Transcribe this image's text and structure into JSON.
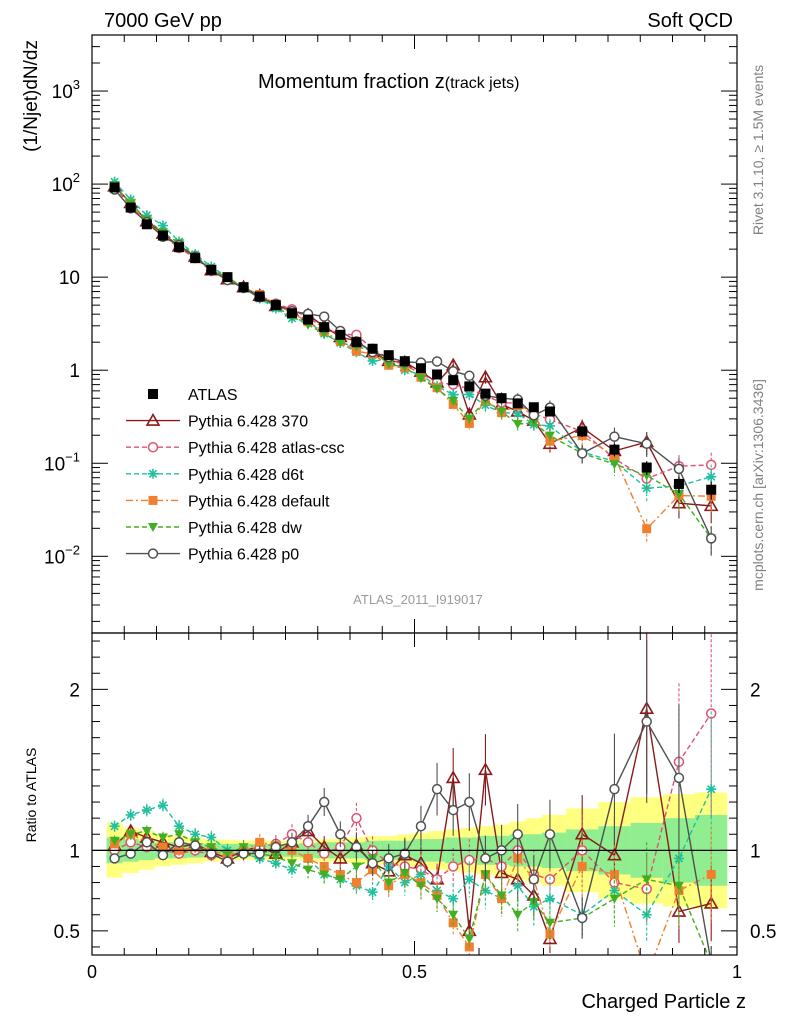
{
  "header": {
    "left": "7000 GeV pp",
    "right": "Soft QCD"
  },
  "side_labels": {
    "rivet": "Rivet 3.1.10, ≥ 1.5M events",
    "mcplots": "mcplots.cern.ch [arXiv:1306.3436]"
  },
  "chart_data": {
    "type": "scatter",
    "title": "Momentum fraction z",
    "title_suffix": "(track jets)",
    "analysis_label": "ATLAS_2011_I919017",
    "ylabel": "(1/Njet)dN/dz",
    "ratio_ylabel": "Ratio to ATLAS",
    "xlabel": "Charged Particle z",
    "xlim": [
      0,
      1
    ],
    "ylim": [
      0.0015,
      4000
    ],
    "ylog": true,
    "ratio_ylim": [
      0.35,
      2.35
    ],
    "x_ticks": [
      "0",
      "0.5",
      "1"
    ],
    "y_ticks": [
      "10^-2",
      "10^-1",
      "1",
      "10",
      "10^2",
      "10^3"
    ],
    "ratio_ticks": [
      "0.5",
      "1",
      "2"
    ],
    "legend_position": "lower-left",
    "x": [
      0.035,
      0.06,
      0.085,
      0.11,
      0.135,
      0.16,
      0.185,
      0.21,
      0.235,
      0.26,
      0.285,
      0.31,
      0.335,
      0.36,
      0.385,
      0.41,
      0.435,
      0.46,
      0.485,
      0.51,
      0.535,
      0.56,
      0.585,
      0.61,
      0.635,
      0.66,
      0.685,
      0.71,
      0.76,
      0.81,
      0.86,
      0.91,
      0.96
    ],
    "data": {
      "name": "ATLAS",
      "values": [
        92,
        56,
        37,
        28,
        21,
        16,
        12,
        10,
        7.8,
        6.2,
        5.0,
        4.1,
        3.5,
        2.9,
        2.4,
        2.0,
        1.7,
        1.45,
        1.25,
        1.05,
        0.9,
        0.78,
        0.67,
        0.56,
        0.5,
        0.44,
        0.4,
        0.36,
        0.22,
        0.14,
        0.09,
        0.06,
        0.052
      ],
      "band_inner": [
        0.08,
        0.07,
        0.06,
        0.05,
        0.05,
        0.045,
        0.04,
        0.04,
        0.04,
        0.04,
        0.04,
        0.04,
        0.045,
        0.05,
        0.05,
        0.05,
        0.06,
        0.06,
        0.06,
        0.07,
        0.07,
        0.08,
        0.08,
        0.09,
        0.09,
        0.1,
        0.1,
        0.11,
        0.13,
        0.15,
        0.17,
        0.2,
        0.22
      ],
      "band_outer": [
        0.17,
        0.14,
        0.12,
        0.1,
        0.09,
        0.08,
        0.07,
        0.065,
        0.06,
        0.06,
        0.06,
        0.06,
        0.065,
        0.07,
        0.07,
        0.08,
        0.09,
        0.09,
        0.1,
        0.11,
        0.12,
        0.13,
        0.14,
        0.15,
        0.16,
        0.18,
        0.2,
        0.22,
        0.26,
        0.3,
        0.33,
        0.35,
        0.36
      ]
    },
    "series": [
      {
        "name": "Pythia 6.428 370",
        "color": "#8b1a1a",
        "marker": "triangle-open",
        "line": "solid",
        "ratio": [
          1.03,
          1.12,
          1.08,
          1.05,
          1.02,
          1.04,
          0.99,
          0.95,
          1.0,
          1.02,
          0.98,
          1.05,
          1.12,
          1.02,
          0.95,
          1.03,
          0.92,
          0.87,
          0.97,
          0.92,
          0.82,
          1.45,
          0.5,
          1.5,
          0.86,
          0.82,
          0.72,
          0.45,
          1.1,
          0.97,
          1.88,
          0.62,
          0.67
        ]
      },
      {
        "name": "Pythia 6.428 atlas-csc",
        "color": "#e05070",
        "marker": "circle-open",
        "line": "dashed",
        "ratio": [
          1.0,
          1.05,
          1.02,
          1.0,
          0.98,
          1.0,
          0.97,
          0.96,
          1.0,
          1.02,
          1.04,
          1.1,
          1.05,
          0.98,
          1.02,
          1.2,
          1.0,
          0.92,
          0.9,
          0.88,
          0.82,
          0.9,
          0.94,
          0.95,
          0.9,
          1.0,
          0.85,
          0.82,
          1.0,
          0.8,
          0.76,
          1.55,
          1.85
        ]
      },
      {
        "name": "Pythia 6.428 d6t",
        "color": "#20c0a0",
        "marker": "star",
        "line": "dashed",
        "ratio": [
          1.15,
          1.22,
          1.25,
          1.28,
          1.15,
          1.1,
          1.08,
          1.0,
          0.98,
          0.95,
          0.92,
          0.88,
          0.95,
          0.85,
          0.82,
          0.78,
          0.74,
          0.9,
          0.8,
          0.85,
          0.75,
          0.7,
          0.82,
          0.75,
          0.7,
          0.78,
          0.65,
          0.7,
          0.6,
          0.75,
          0.6,
          0.95,
          1.38
        ]
      },
      {
        "name": "Pythia 6.428 default",
        "color": "#f08030",
        "marker": "square",
        "line": "dashdot",
        "ratio": [
          1.04,
          1.1,
          1.05,
          1.02,
          1.0,
          1.02,
          1.0,
          0.97,
          1.0,
          1.05,
          1.03,
          1.0,
          0.95,
          0.9,
          0.85,
          0.8,
          0.88,
          0.78,
          0.85,
          0.8,
          0.72,
          0.55,
          0.4,
          0.85,
          0.7,
          0.95,
          0.82,
          0.48,
          0.9,
          0.85,
          0.22,
          0.75,
          0.85
        ]
      },
      {
        "name": "Pythia 6.428 dw",
        "color": "#40b020",
        "marker": "triangle-down",
        "line": "dashed",
        "ratio": [
          1.06,
          1.1,
          1.12,
          1.08,
          1.1,
          1.05,
          1.02,
          0.98,
          1.02,
          0.98,
          0.96,
          0.92,
          0.88,
          0.85,
          0.82,
          0.9,
          0.95,
          0.8,
          0.86,
          0.78,
          0.7,
          0.6,
          0.45,
          0.85,
          0.72,
          0.6,
          0.68,
          0.55,
          0.58,
          0.7,
          0.82,
          0.78,
          0.3
        ]
      },
      {
        "name": "Pythia 6.428 p0",
        "color": "#505050",
        "marker": "circle-open",
        "line": "solid",
        "ratio": [
          0.95,
          0.98,
          1.05,
          0.97,
          1.05,
          1.03,
          0.98,
          0.93,
          0.98,
          0.98,
          1.02,
          1.05,
          1.15,
          1.3,
          1.1,
          1.02,
          0.92,
          0.95,
          0.98,
          1.15,
          1.38,
          1.25,
          1.3,
          0.95,
          1.0,
          1.1,
          0.82,
          1.1,
          0.58,
          1.38,
          1.8,
          1.45,
          0.3
        ]
      }
    ]
  }
}
